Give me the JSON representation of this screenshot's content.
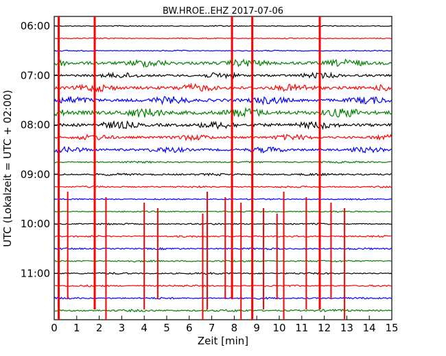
{
  "chart_data": {
    "type": "line",
    "title": "BW.HROE..EHZ 2017-07-06",
    "xlabel": "Zeit  [min]",
    "ylabel": "UTC (Lokalzeit = UTC + 02:00)",
    "xlim": [
      0,
      15
    ],
    "x_ticks": [
      "0",
      "1",
      "2",
      "3",
      "4",
      "5",
      "6",
      "7",
      "8",
      "9",
      "10",
      "11",
      "12",
      "13",
      "14",
      "15"
    ],
    "y_ticks": [
      {
        "label": "06:00",
        "hour": 6
      },
      {
        "label": "07:00",
        "hour": 7
      },
      {
        "label": "08:00",
        "hour": 8
      },
      {
        "label": "09:00",
        "hour": 9
      },
      {
        "label": "10:00",
        "hour": 10
      },
      {
        "label": "11:00",
        "hour": 11
      }
    ],
    "trace_start": "06:00",
    "trace_interval_min": 15,
    "trace_count": 24,
    "trace_colors": [
      "#000000",
      "#ff0000",
      "#0000ff",
      "#008000"
    ],
    "noise_amplitude": [
      0.5,
      0.5,
      0.5,
      2.0,
      1.5,
      2.0,
      2.0,
      2.5,
      2.0,
      1.5,
      1.5,
      0.8,
      1.0,
      0.8,
      0.6,
      0.6,
      0.7,
      0.8,
      0.8,
      0.8,
      0.8,
      0.8,
      0.8,
      1.0
    ],
    "spikes_min": [
      0.2,
      1.8,
      7.9,
      8.8,
      11.8,
      0.6,
      2.3,
      4.0,
      4.6,
      6.6,
      6.8,
      7.6,
      8.3,
      9.3,
      9.9,
      10.2,
      11.2,
      12.3,
      12.9
    ]
  }
}
